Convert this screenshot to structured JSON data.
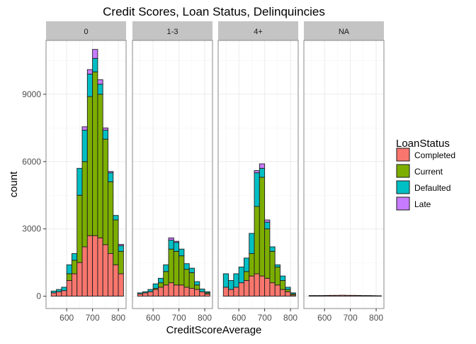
{
  "chart_data": {
    "type": "bar",
    "stacked": true,
    "title": "Credit Scores, Loan Status, Delinquincies",
    "xlabel": "CreditScoreAverage",
    "ylabel": "count",
    "xlim": [
      520,
      830
    ],
    "ylim": [
      -550,
      11400
    ],
    "xticks": [
      600,
      700,
      800
    ],
    "yticks": [
      0,
      3000,
      6000,
      9000
    ],
    "bin_width": 20,
    "x": [
      550,
      570,
      590,
      610,
      630,
      650,
      670,
      690,
      710,
      730,
      750,
      770,
      790,
      810
    ],
    "grid": true,
    "legend": {
      "title": "LoanStatus",
      "placement": "right",
      "entries": [
        "Completed",
        "Current",
        "Defaulted",
        "Late"
      ]
    },
    "colors": {
      "Completed": "#F8766D",
      "Current": "#7CAE00",
      "Defaulted": "#00BFC4",
      "Late": "#C77CFF",
      "strip_fill": "#c4c4c4",
      "panel_border": "#888888",
      "grid": "#ececec"
    },
    "facets": [
      {
        "label": "0",
        "series": [
          {
            "name": "Completed",
            "values": [
              150,
              200,
              250,
              700,
              1000,
              1500,
              2200,
              2700,
              2700,
              2600,
              2300,
              1900,
              1400,
              1000
            ]
          },
          {
            "name": "Current",
            "values": [
              0,
              0,
              0,
              300,
              600,
              3000,
              3800,
              6200,
              7300,
              6400,
              4700,
              3200,
              2000,
              1000
            ]
          },
          {
            "name": "Defaulted",
            "values": [
              80,
              100,
              150,
              400,
              300,
              1200,
              1400,
              1000,
              600,
              450,
              400,
              400,
              200,
              250
            ]
          },
          {
            "name": "Late",
            "values": [
              0,
              0,
              0,
              0,
              0,
              0,
              150,
              200,
              400,
              200,
              100,
              60,
              0,
              60
            ]
          }
        ]
      },
      {
        "label": "1-3",
        "series": [
          {
            "name": "Completed",
            "values": [
              100,
              150,
              200,
              300,
              400,
              500,
              600,
              500,
              500,
              400,
              350,
              300,
              200,
              100
            ]
          },
          {
            "name": "Current",
            "values": [
              0,
              0,
              0,
              50,
              200,
              600,
              1500,
              1500,
              1300,
              800,
              700,
              200,
              0,
              50
            ]
          },
          {
            "name": "Defaulted",
            "values": [
              50,
              50,
              100,
              200,
              200,
              300,
              400,
              400,
              300,
              250,
              200,
              150,
              120,
              50
            ]
          },
          {
            "name": "Late",
            "values": [
              0,
              0,
              0,
              0,
              0,
              0,
              100,
              50,
              0,
              0,
              0,
              0,
              0,
              0
            ]
          }
        ]
      },
      {
        "label": "4+",
        "series": [
          {
            "name": "Completed",
            "values": [
              400,
              300,
              400,
              600,
              700,
              900,
              1000,
              900,
              800,
              600,
              500,
              300,
              200,
              50
            ]
          },
          {
            "name": "Current",
            "values": [
              0,
              0,
              0,
              0,
              400,
              1000,
              3000,
              4400,
              2200,
              1400,
              800,
              400,
              100,
              50
            ]
          },
          {
            "name": "Defaulted",
            "values": [
              600,
              400,
              600,
              700,
              600,
              900,
              1500,
              400,
              300,
              200,
              100,
              200,
              100,
              50
            ]
          },
          {
            "name": "Late",
            "values": [
              0,
              0,
              0,
              0,
              0,
              0,
              100,
              200,
              100,
              0,
              0,
              0,
              0,
              0
            ]
          }
        ]
      },
      {
        "label": "NA",
        "series": [
          {
            "name": "Completed",
            "values": [
              30,
              30,
              30,
              35,
              40,
              40,
              45,
              40,
              40,
              35,
              30,
              30,
              25,
              20
            ]
          },
          {
            "name": "Current",
            "values": [
              0,
              0,
              0,
              0,
              0,
              0,
              0,
              0,
              0,
              0,
              0,
              0,
              0,
              0
            ]
          },
          {
            "name": "Defaulted",
            "values": [
              0,
              0,
              0,
              0,
              0,
              0,
              0,
              0,
              0,
              0,
              0,
              0,
              0,
              0
            ]
          },
          {
            "name": "Late",
            "values": [
              0,
              0,
              0,
              0,
              0,
              0,
              0,
              0,
              0,
              0,
              0,
              0,
              0,
              0
            ]
          }
        ]
      }
    ]
  }
}
